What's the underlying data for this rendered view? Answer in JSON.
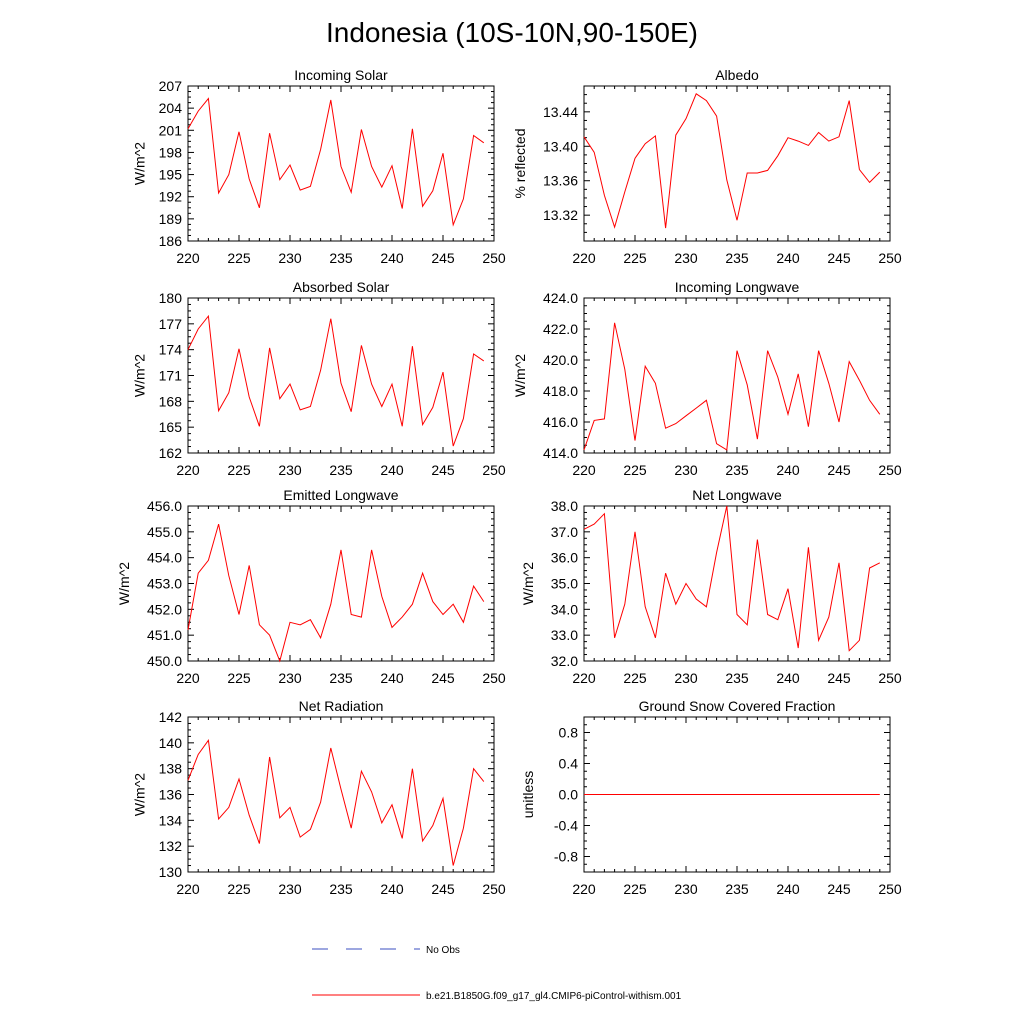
{
  "page_title": "Indonesia (10S-10N,90-150E)",
  "legend": {
    "obs_label": "No Obs",
    "obs_color": "#3b4fc0",
    "model_label": "b.e21.B1850G.f09_g17_gl4.CMIP6-piControl-withism.001",
    "model_color": "#ff0000"
  },
  "chart_data": [
    {
      "type": "line",
      "title": "Incoming Solar",
      "ylabel": "W/m^2",
      "xlim": [
        220,
        250
      ],
      "ylim": [
        186,
        207
      ],
      "xticks": [
        "220",
        "225",
        "230",
        "235",
        "240",
        "245",
        "250"
      ],
      "yticks": [
        "186",
        "189",
        "192",
        "195",
        "198",
        "201",
        "204",
        "207"
      ],
      "series": [
        {
          "x": [
            220,
            221,
            222,
            223,
            224,
            225,
            226,
            227,
            228,
            229,
            230,
            231,
            232,
            233,
            234,
            235,
            236,
            237,
            238,
            239,
            240,
            241,
            242,
            243,
            244,
            245,
            246,
            247,
            248,
            249
          ],
          "values": [
            201.2,
            203.6,
            205.3,
            192.5,
            195.0,
            200.8,
            194.4,
            190.5,
            200.6,
            194.3,
            196.3,
            192.9,
            193.4,
            198.4,
            205.1,
            196.1,
            192.6,
            201.1,
            196.1,
            193.3,
            196.2,
            190.4,
            201.2,
            190.7,
            192.8,
            197.9,
            188.2,
            191.7,
            200.3,
            199.3
          ]
        }
      ]
    },
    {
      "type": "line",
      "title": "Albedo",
      "ylabel": "% reflected",
      "xlim": [
        220,
        250
      ],
      "ylim": [
        13.29,
        13.47
      ],
      "xticks": [
        "220",
        "225",
        "230",
        "235",
        "240",
        "245",
        "250"
      ],
      "yticks": [
        "13.32",
        "13.36",
        "13.40",
        "13.44"
      ],
      "series": [
        {
          "x": [
            220,
            221,
            222,
            223,
            224,
            225,
            226,
            227,
            228,
            229,
            230,
            231,
            232,
            233,
            234,
            235,
            236,
            237,
            238,
            239,
            240,
            241,
            242,
            243,
            244,
            245,
            246,
            247,
            248,
            249
          ],
          "values": [
            13.411,
            13.393,
            13.343,
            13.306,
            13.347,
            13.386,
            13.403,
            13.412,
            13.305,
            13.413,
            13.432,
            13.461,
            13.453,
            13.435,
            13.361,
            13.314,
            13.369,
            13.369,
            13.372,
            13.389,
            13.41,
            13.406,
            13.401,
            13.416,
            13.406,
            13.411,
            13.453,
            13.373,
            13.358,
            13.37
          ]
        }
      ]
    },
    {
      "type": "line",
      "title": "Absorbed Solar",
      "ylabel": "W/m^2",
      "xlim": [
        220,
        250
      ],
      "ylim": [
        162,
        180
      ],
      "xticks": [
        "220",
        "225",
        "230",
        "235",
        "240",
        "245",
        "250"
      ],
      "yticks": [
        "162",
        "165",
        "168",
        "171",
        "174",
        "177",
        "180"
      ],
      "series": [
        {
          "x": [
            220,
            221,
            222,
            223,
            224,
            225,
            226,
            227,
            228,
            229,
            230,
            231,
            232,
            233,
            234,
            235,
            236,
            237,
            238,
            239,
            240,
            241,
            242,
            243,
            244,
            245,
            246,
            247,
            248,
            249
          ],
          "values": [
            174.0,
            176.4,
            177.9,
            166.9,
            169.0,
            174.1,
            168.5,
            165.1,
            174.2,
            168.3,
            170.0,
            167.0,
            167.4,
            171.6,
            177.6,
            170.1,
            166.8,
            174.5,
            170.0,
            167.4,
            170.0,
            165.1,
            174.4,
            165.3,
            167.3,
            171.4,
            162.8,
            166.0,
            173.5,
            172.7
          ]
        }
      ]
    },
    {
      "type": "line",
      "title": "Incoming Longwave",
      "ylabel": "W/m^2",
      "xlim": [
        220,
        250
      ],
      "ylim": [
        414,
        424
      ],
      "xticks": [
        "220",
        "225",
        "230",
        "235",
        "240",
        "245",
        "250"
      ],
      "yticks": [
        "414.0",
        "416.0",
        "418.0",
        "420.0",
        "422.0",
        "424.0"
      ],
      "series": [
        {
          "x": [
            220,
            221,
            222,
            223,
            224,
            225,
            226,
            227,
            228,
            229,
            230,
            231,
            232,
            233,
            234,
            235,
            236,
            237,
            238,
            239,
            240,
            241,
            242,
            243,
            244,
            245,
            246,
            247,
            248,
            249
          ],
          "values": [
            414.2,
            416.1,
            416.2,
            422.4,
            419.4,
            414.8,
            419.6,
            418.5,
            415.6,
            415.9,
            416.4,
            416.9,
            417.4,
            414.6,
            414.2,
            420.6,
            418.4,
            414.9,
            420.6,
            418.9,
            416.5,
            419.1,
            415.7,
            420.6,
            418.5,
            416.0,
            419.9,
            418.7,
            417.4,
            416.5
          ]
        }
      ]
    },
    {
      "type": "line",
      "title": "Emitted Longwave",
      "ylabel": "W/m^2",
      "xlim": [
        220,
        250
      ],
      "ylim": [
        450,
        456
      ],
      "xticks": [
        "220",
        "225",
        "230",
        "235",
        "240",
        "245",
        "250"
      ],
      "yticks": [
        "450.0",
        "451.0",
        "452.0",
        "453.0",
        "454.0",
        "455.0",
        "456.0"
      ],
      "series": [
        {
          "x": [
            220,
            221,
            222,
            223,
            224,
            225,
            226,
            227,
            228,
            229,
            230,
            231,
            232,
            233,
            234,
            235,
            236,
            237,
            238,
            239,
            240,
            241,
            242,
            243,
            244,
            245,
            246,
            247,
            248,
            249
          ],
          "values": [
            451.2,
            453.4,
            453.9,
            455.3,
            453.3,
            451.8,
            453.7,
            451.4,
            451.0,
            450.0,
            451.5,
            451.4,
            451.6,
            450.9,
            452.2,
            454.3,
            451.8,
            451.7,
            454.3,
            452.5,
            451.3,
            451.7,
            452.2,
            453.4,
            452.3,
            451.8,
            452.2,
            451.5,
            452.9,
            452.3
          ]
        }
      ]
    },
    {
      "type": "line",
      "title": "Net Longwave",
      "ylabel": "W/m^2",
      "xlim": [
        220,
        250
      ],
      "ylim": [
        32,
        38
      ],
      "xticks": [
        "220",
        "225",
        "230",
        "235",
        "240",
        "245",
        "250"
      ],
      "yticks": [
        "32.0",
        "33.0",
        "34.0",
        "35.0",
        "36.0",
        "37.0",
        "38.0"
      ],
      "series": [
        {
          "x": [
            220,
            221,
            222,
            223,
            224,
            225,
            226,
            227,
            228,
            229,
            230,
            231,
            232,
            233,
            234,
            235,
            236,
            237,
            238,
            239,
            240,
            241,
            242,
            243,
            244,
            245,
            246,
            247,
            248,
            249
          ],
          "values": [
            37.1,
            37.3,
            37.7,
            32.9,
            34.2,
            37.0,
            34.1,
            32.9,
            35.4,
            34.2,
            35.0,
            34.4,
            34.1,
            36.2,
            38.0,
            33.8,
            33.4,
            36.7,
            33.8,
            33.6,
            34.8,
            32.5,
            36.4,
            32.8,
            33.7,
            35.8,
            32.4,
            32.8,
            35.6,
            35.8
          ]
        }
      ]
    },
    {
      "type": "line",
      "title": "Net Radiation",
      "ylabel": "W/m^2",
      "xlim": [
        220,
        250
      ],
      "ylim": [
        130,
        142
      ],
      "xticks": [
        "220",
        "225",
        "230",
        "235",
        "240",
        "245",
        "250"
      ],
      "yticks": [
        "130",
        "132",
        "134",
        "136",
        "138",
        "140",
        "142"
      ],
      "series": [
        {
          "x": [
            220,
            221,
            222,
            223,
            224,
            225,
            226,
            227,
            228,
            229,
            230,
            231,
            232,
            233,
            234,
            235,
            236,
            237,
            238,
            239,
            240,
            241,
            242,
            243,
            244,
            245,
            246,
            247,
            248,
            249
          ],
          "values": [
            137.1,
            139.1,
            140.2,
            134.1,
            135.0,
            137.2,
            134.4,
            132.2,
            138.9,
            134.2,
            135.0,
            132.7,
            133.3,
            135.4,
            139.6,
            136.4,
            133.4,
            137.8,
            136.2,
            133.8,
            135.2,
            132.6,
            138.0,
            132.4,
            133.6,
            135.7,
            130.5,
            133.4,
            138.0,
            137.0
          ]
        }
      ]
    },
    {
      "type": "line",
      "title": "Ground Snow Covered Fraction",
      "ylabel": "unitless",
      "xlim": [
        220,
        250
      ],
      "ylim": [
        -1.0,
        1.0
      ],
      "xticks": [
        "220",
        "225",
        "230",
        "235",
        "240",
        "245",
        "250"
      ],
      "yticks": [
        "-0.8",
        "-0.4",
        "0.0",
        "0.4",
        "0.8"
      ],
      "series": [
        {
          "x": [
            220,
            249
          ],
          "values": [
            0.0,
            0.0
          ]
        }
      ]
    }
  ]
}
